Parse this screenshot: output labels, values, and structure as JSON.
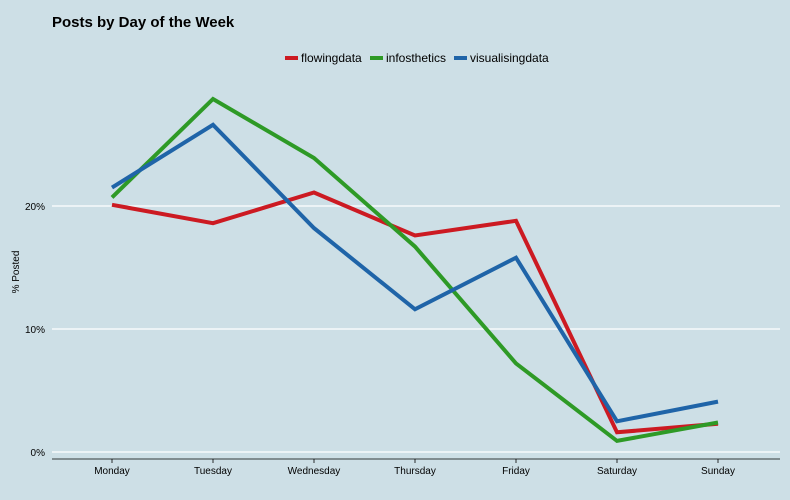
{
  "chart_data": {
    "type": "line",
    "title": "Posts by Day of the Week",
    "xlabel": "",
    "ylabel": "% Posted",
    "categories": [
      "Monday",
      "Tuesday",
      "Wednesday",
      "Thursday",
      "Friday",
      "Saturday",
      "Sunday"
    ],
    "ylim": [
      0,
      30
    ],
    "yticks": [
      0,
      10,
      20
    ],
    "ytick_labels": [
      "0%",
      "10%",
      "20%"
    ],
    "grid": "horizontal",
    "legend_position": "top-center",
    "series": [
      {
        "name": "flowingdata",
        "color": "#cc1a22",
        "values": [
          20.1,
          18.6,
          21.1,
          17.6,
          18.8,
          1.6,
          2.3
        ]
      },
      {
        "name": "infosthetics",
        "color": "#2e9a26",
        "values": [
          20.7,
          28.7,
          23.9,
          16.7,
          7.2,
          0.9,
          2.4
        ]
      },
      {
        "name": "visualisingdata",
        "color": "#1f64a8",
        "values": [
          21.5,
          26.6,
          18.2,
          11.6,
          15.8,
          2.5,
          4.1
        ]
      }
    ]
  }
}
